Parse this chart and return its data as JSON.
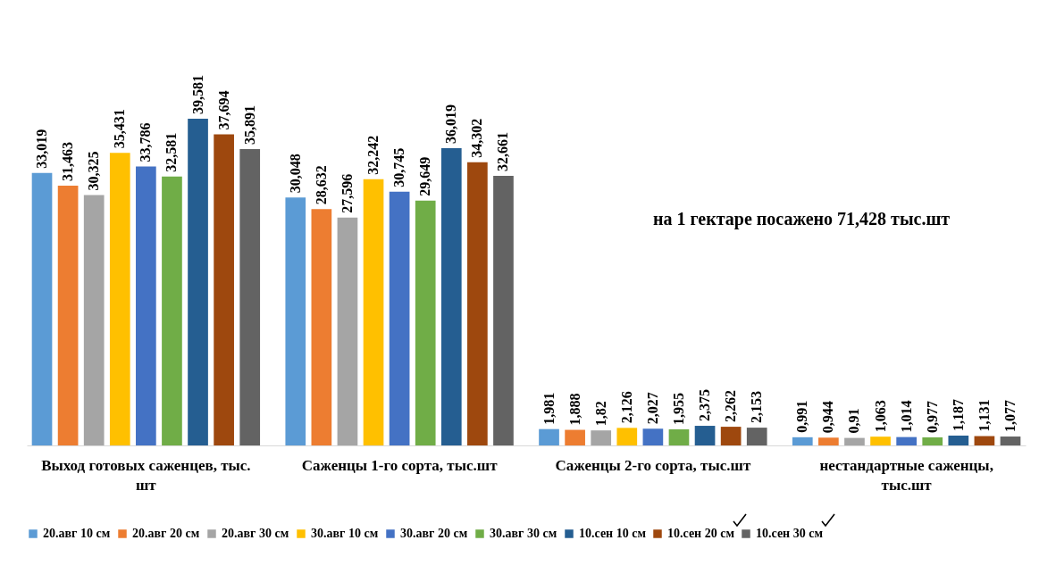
{
  "chart_data": {
    "type": "bar",
    "categories": [
      "Выход готовых саженцев, тыс. шт",
      "Саженцы 1-го сорта, тыс.шт",
      "Саженцы 2-го сорта, тыс.шт",
      "нестандартные  саженцы, тыс.шт"
    ],
    "series": [
      {
        "name": "20.авг 10 см",
        "color": "#5b9bd5",
        "values": [
          33.019,
          30.048,
          1.981,
          0.991
        ],
        "value_labels": [
          "33,019",
          "30,048",
          "1,981",
          "0,991"
        ]
      },
      {
        "name": "20.авг 20 см",
        "color": "#ed7d31",
        "values": [
          31.463,
          28.632,
          1.888,
          0.944
        ],
        "value_labels": [
          "31,463",
          "28,632",
          "1,888",
          "0,944"
        ]
      },
      {
        "name": "20.авг 30 см",
        "color": "#a5a5a5",
        "values": [
          30.325,
          27.596,
          1.82,
          0.91
        ],
        "value_labels": [
          "30,325",
          "27,596",
          "1,82",
          "0,91"
        ]
      },
      {
        "name": "30.авг 10 см",
        "color": "#ffc000",
        "values": [
          35.431,
          32.242,
          2.126,
          1.063
        ],
        "value_labels": [
          "35,431",
          "32,242",
          "2,126",
          "1,063"
        ]
      },
      {
        "name": "30.авг 20 см",
        "color": "#4472c4",
        "values": [
          33.786,
          30.745,
          2.027,
          1.014
        ],
        "value_labels": [
          "33,786",
          "30,745",
          "2,027",
          "1,014"
        ]
      },
      {
        "name": "30.авг 30 см",
        "color": "#70ad47",
        "values": [
          32.581,
          29.649,
          1.955,
          0.977
        ],
        "value_labels": [
          "32,581",
          "29,649",
          "1,955",
          "0,977"
        ]
      },
      {
        "name": "10.сен 10 см",
        "color": "#255e91",
        "values": [
          39.581,
          36.019,
          2.375,
          1.187
        ],
        "value_labels": [
          "39,581",
          "36,019",
          "2,375",
          "1,187"
        ]
      },
      {
        "name": "10.сен 20 см",
        "color": "#9e480e",
        "values": [
          37.694,
          34.302,
          2.262,
          1.131
        ],
        "value_labels": [
          "37,694",
          "34,302",
          "2,262",
          "1,131"
        ]
      },
      {
        "name": "10.сен 30 см",
        "color": "#636363",
        "values": [
          35.891,
          32.661,
          2.153,
          1.077
        ],
        "value_labels": [
          "35,891",
          "32,661",
          "2,153",
          "1,077"
        ]
      }
    ],
    "annotations": [
      "на 1 гектаре посажено 71,428 тыс.шт"
    ],
    "legend": "bottom",
    "tick_labels": "x"
  }
}
